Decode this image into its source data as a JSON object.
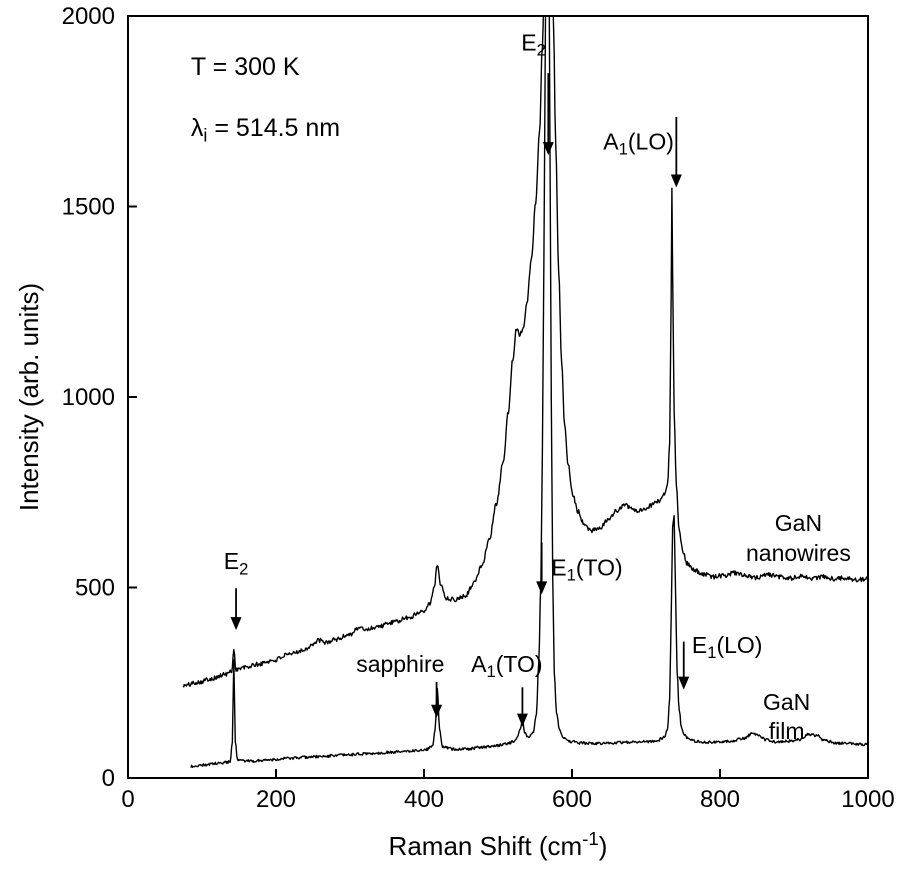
{
  "figure": {
    "background": "#ffffff",
    "ink": "#000000"
  },
  "chart_data": {
    "type": "line",
    "title": "",
    "xlabel": "Raman Shift (cm^-1^)",
    "ylabel": "Intensity (arb. units)",
    "xlim": [
      0,
      1000
    ],
    "ylim": [
      0,
      2000
    ],
    "xticks": [
      0,
      200,
      400,
      600,
      800,
      1000
    ],
    "yticks": [
      0,
      500,
      1000,
      1500,
      2000
    ],
    "grid": false,
    "legend_position": "none (curves labeled inline)",
    "peaks": [
      {
        "label": "E~2~ (low)",
        "x": 144
      },
      {
        "label": "sapphire",
        "x": 418
      },
      {
        "label": "A~1~(TO)",
        "x": 533
      },
      {
        "label": "E~1~(TO)",
        "x": 559
      },
      {
        "label": "E~2~ (high)",
        "x": 567
      },
      {
        "label": "A~1~(LO)",
        "x": 735
      },
      {
        "label": "E~1~(LO)",
        "x": 745
      }
    ],
    "series": [
      {
        "name": "GaN nanowires",
        "noise": 6,
        "seed": 101,
        "points": [
          [
            75,
            242
          ],
          [
            95,
            252
          ],
          [
            115,
            262
          ],
          [
            132,
            272
          ],
          [
            140,
            280
          ],
          [
            143,
            335
          ],
          [
            146,
            285
          ],
          [
            158,
            290
          ],
          [
            175,
            298
          ],
          [
            195,
            308
          ],
          [
            215,
            322
          ],
          [
            235,
            335
          ],
          [
            252,
            352
          ],
          [
            258,
            362
          ],
          [
            265,
            355
          ],
          [
            282,
            364
          ],
          [
            300,
            378
          ],
          [
            312,
            394
          ],
          [
            322,
            390
          ],
          [
            338,
            398
          ],
          [
            358,
            408
          ],
          [
            378,
            420
          ],
          [
            398,
            438
          ],
          [
            408,
            458
          ],
          [
            414,
            500
          ],
          [
            418,
            562
          ],
          [
            423,
            505
          ],
          [
            430,
            472
          ],
          [
            442,
            468
          ],
          [
            455,
            478
          ],
          [
            468,
            512
          ],
          [
            478,
            558
          ],
          [
            488,
            625
          ],
          [
            498,
            720
          ],
          [
            507,
            830
          ],
          [
            514,
            960
          ],
          [
            520,
            1100
          ],
          [
            525,
            1180
          ],
          [
            529,
            1165
          ],
          [
            534,
            1180
          ],
          [
            539,
            1250
          ],
          [
            545,
            1360
          ],
          [
            551,
            1510
          ],
          [
            556,
            1690
          ],
          [
            560,
            1920
          ],
          [
            563,
            2160
          ],
          [
            566,
            2420
          ],
          [
            569,
            2500
          ],
          [
            572,
            2280
          ],
          [
            575,
            1980
          ],
          [
            578,
            1660
          ],
          [
            582,
            1330
          ],
          [
            586,
            1090
          ],
          [
            590,
            930
          ],
          [
            595,
            820
          ],
          [
            601,
            745
          ],
          [
            608,
            700
          ],
          [
            616,
            668
          ],
          [
            625,
            650
          ],
          [
            635,
            652
          ],
          [
            648,
            675
          ],
          [
            660,
            700
          ],
          [
            670,
            718
          ],
          [
            678,
            712
          ],
          [
            688,
            700
          ],
          [
            698,
            703
          ],
          [
            708,
            716
          ],
          [
            717,
            728
          ],
          [
            724,
            742
          ],
          [
            729,
            768
          ],
          [
            732,
            880
          ],
          [
            734,
            1260
          ],
          [
            735,
            1545
          ],
          [
            736,
            1320
          ],
          [
            738,
            960
          ],
          [
            741,
            770
          ],
          [
            745,
            648
          ],
          [
            750,
            592
          ],
          [
            756,
            562
          ],
          [
            765,
            545
          ],
          [
            778,
            535
          ],
          [
            792,
            528
          ],
          [
            806,
            532
          ],
          [
            820,
            538
          ],
          [
            835,
            530
          ],
          [
            850,
            526
          ],
          [
            865,
            534
          ],
          [
            880,
            528
          ],
          [
            895,
            524
          ],
          [
            910,
            530
          ],
          [
            925,
            524
          ],
          [
            940,
            528
          ],
          [
            955,
            522
          ],
          [
            970,
            526
          ],
          [
            985,
            520
          ],
          [
            1000,
            522
          ]
        ]
      },
      {
        "name": "GaN film",
        "noise": 3.5,
        "seed": 202,
        "points": [
          [
            85,
            30
          ],
          [
            100,
            34
          ],
          [
            120,
            38
          ],
          [
            138,
            42
          ],
          [
            141,
            90
          ],
          [
            143,
            310
          ],
          [
            145,
            95
          ],
          [
            148,
            46
          ],
          [
            165,
            44
          ],
          [
            190,
            48
          ],
          [
            220,
            52
          ],
          [
            255,
            56
          ],
          [
            290,
            60
          ],
          [
            325,
            64
          ],
          [
            360,
            68
          ],
          [
            390,
            72
          ],
          [
            405,
            76
          ],
          [
            412,
            85
          ],
          [
            415,
            130
          ],
          [
            418,
            232
          ],
          [
            421,
            130
          ],
          [
            425,
            82
          ],
          [
            438,
            76
          ],
          [
            455,
            76
          ],
          [
            475,
            80
          ],
          [
            495,
            84
          ],
          [
            512,
            90
          ],
          [
            524,
            98
          ],
          [
            530,
            128
          ],
          [
            533,
            152
          ],
          [
            536,
            118
          ],
          [
            542,
            106
          ],
          [
            548,
            122
          ],
          [
            552,
            170
          ],
          [
            555,
            300
          ],
          [
            558,
            520
          ],
          [
            560,
            860
          ],
          [
            562,
            1350
          ],
          [
            564,
            1950
          ],
          [
            566,
            2500
          ],
          [
            568,
            2500
          ],
          [
            570,
            1750
          ],
          [
            572,
            1000
          ],
          [
            574,
            520
          ],
          [
            576,
            280
          ],
          [
            579,
            170
          ],
          [
            583,
            128
          ],
          [
            589,
            104
          ],
          [
            598,
            96
          ],
          [
            612,
            92
          ],
          [
            630,
            90
          ],
          [
            650,
            92
          ],
          [
            670,
            94
          ],
          [
            690,
            95
          ],
          [
            705,
            96
          ],
          [
            716,
            99
          ],
          [
            724,
            106
          ],
          [
            729,
            125
          ],
          [
            732,
            210
          ],
          [
            734,
            420
          ],
          [
            736,
            660
          ],
          [
            738,
            690
          ],
          [
            740,
            480
          ],
          [
            742,
            280
          ],
          [
            745,
            175
          ],
          [
            748,
            132
          ],
          [
            752,
            112
          ],
          [
            758,
            102
          ],
          [
            768,
            96
          ],
          [
            782,
            94
          ],
          [
            798,
            94
          ],
          [
            815,
            96
          ],
          [
            832,
            104
          ],
          [
            845,
            118
          ],
          [
            852,
            112
          ],
          [
            862,
            100
          ],
          [
            875,
            95
          ],
          [
            890,
            96
          ],
          [
            905,
            100
          ],
          [
            920,
            114
          ],
          [
            930,
            112
          ],
          [
            942,
            98
          ],
          [
            958,
            92
          ],
          [
            975,
            90
          ],
          [
            1000,
            88
          ]
        ]
      }
    ],
    "annotations": [
      {
        "id": "condition-temperature",
        "text": "T = 300 K",
        "x": 85,
        "y": 1845,
        "anchor": "start",
        "size": 25
      },
      {
        "id": "condition-wavelength",
        "text": "λ~i~ = 514.5 nm",
        "x": 85,
        "y": 1685,
        "anchor": "start",
        "size": 25
      },
      {
        "id": "peak-e2-high",
        "text": "E~2~",
        "x": 548,
        "y": 1910,
        "anchor": "middle",
        "size": 23,
        "arrow": {
          "x": 568,
          "from": 1850,
          "to": 1635
        }
      },
      {
        "id": "peak-a1-lo",
        "text": "A~1~(LO)",
        "x": 690,
        "y": 1650,
        "anchor": "middle",
        "size": 23,
        "arrow": {
          "x": 741,
          "from": 1735,
          "to": 1550
        }
      },
      {
        "id": "peak-e2-low",
        "text": "E~2~",
        "x": 146,
        "y": 548,
        "anchor": "middle",
        "size": 23,
        "arrow": {
          "x": 146,
          "from": 498,
          "to": 388
        }
      },
      {
        "id": "peak-sapphire",
        "text": "sapphire",
        "x": 368,
        "y": 278,
        "anchor": "middle",
        "size": 23,
        "arrow": {
          "x": 417,
          "from": 252,
          "to": 158
        }
      },
      {
        "id": "peak-a1-to",
        "text": "A~1~(TO)",
        "x": 512,
        "y": 278,
        "anchor": "middle",
        "size": 23,
        "arrow": {
          "x": 533,
          "from": 238,
          "to": 135
        }
      },
      {
        "id": "peak-e1-to",
        "text": "E~1~(TO)",
        "x": 572,
        "y": 532,
        "anchor": "start",
        "size": 23,
        "arrow": {
          "x": 559,
          "from": 618,
          "to": 482
        }
      },
      {
        "id": "peak-e1-lo",
        "text": "E~1~(LO)",
        "x": 762,
        "y": 328,
        "anchor": "start",
        "size": 23,
        "arrow": {
          "x": 751,
          "from": 358,
          "to": 232
        }
      },
      {
        "id": "curve-label-nanowires",
        "lines": [
          "GaN",
          "nanowires"
        ],
        "x": 906,
        "y": 648,
        "line_gap": 78,
        "anchor": "middle",
        "size": 23
      },
      {
        "id": "curve-label-film",
        "lines": [
          "GaN",
          "film"
        ],
        "x": 890,
        "y": 178,
        "line_gap": 76,
        "anchor": "middle",
        "size": 23
      }
    ]
  }
}
